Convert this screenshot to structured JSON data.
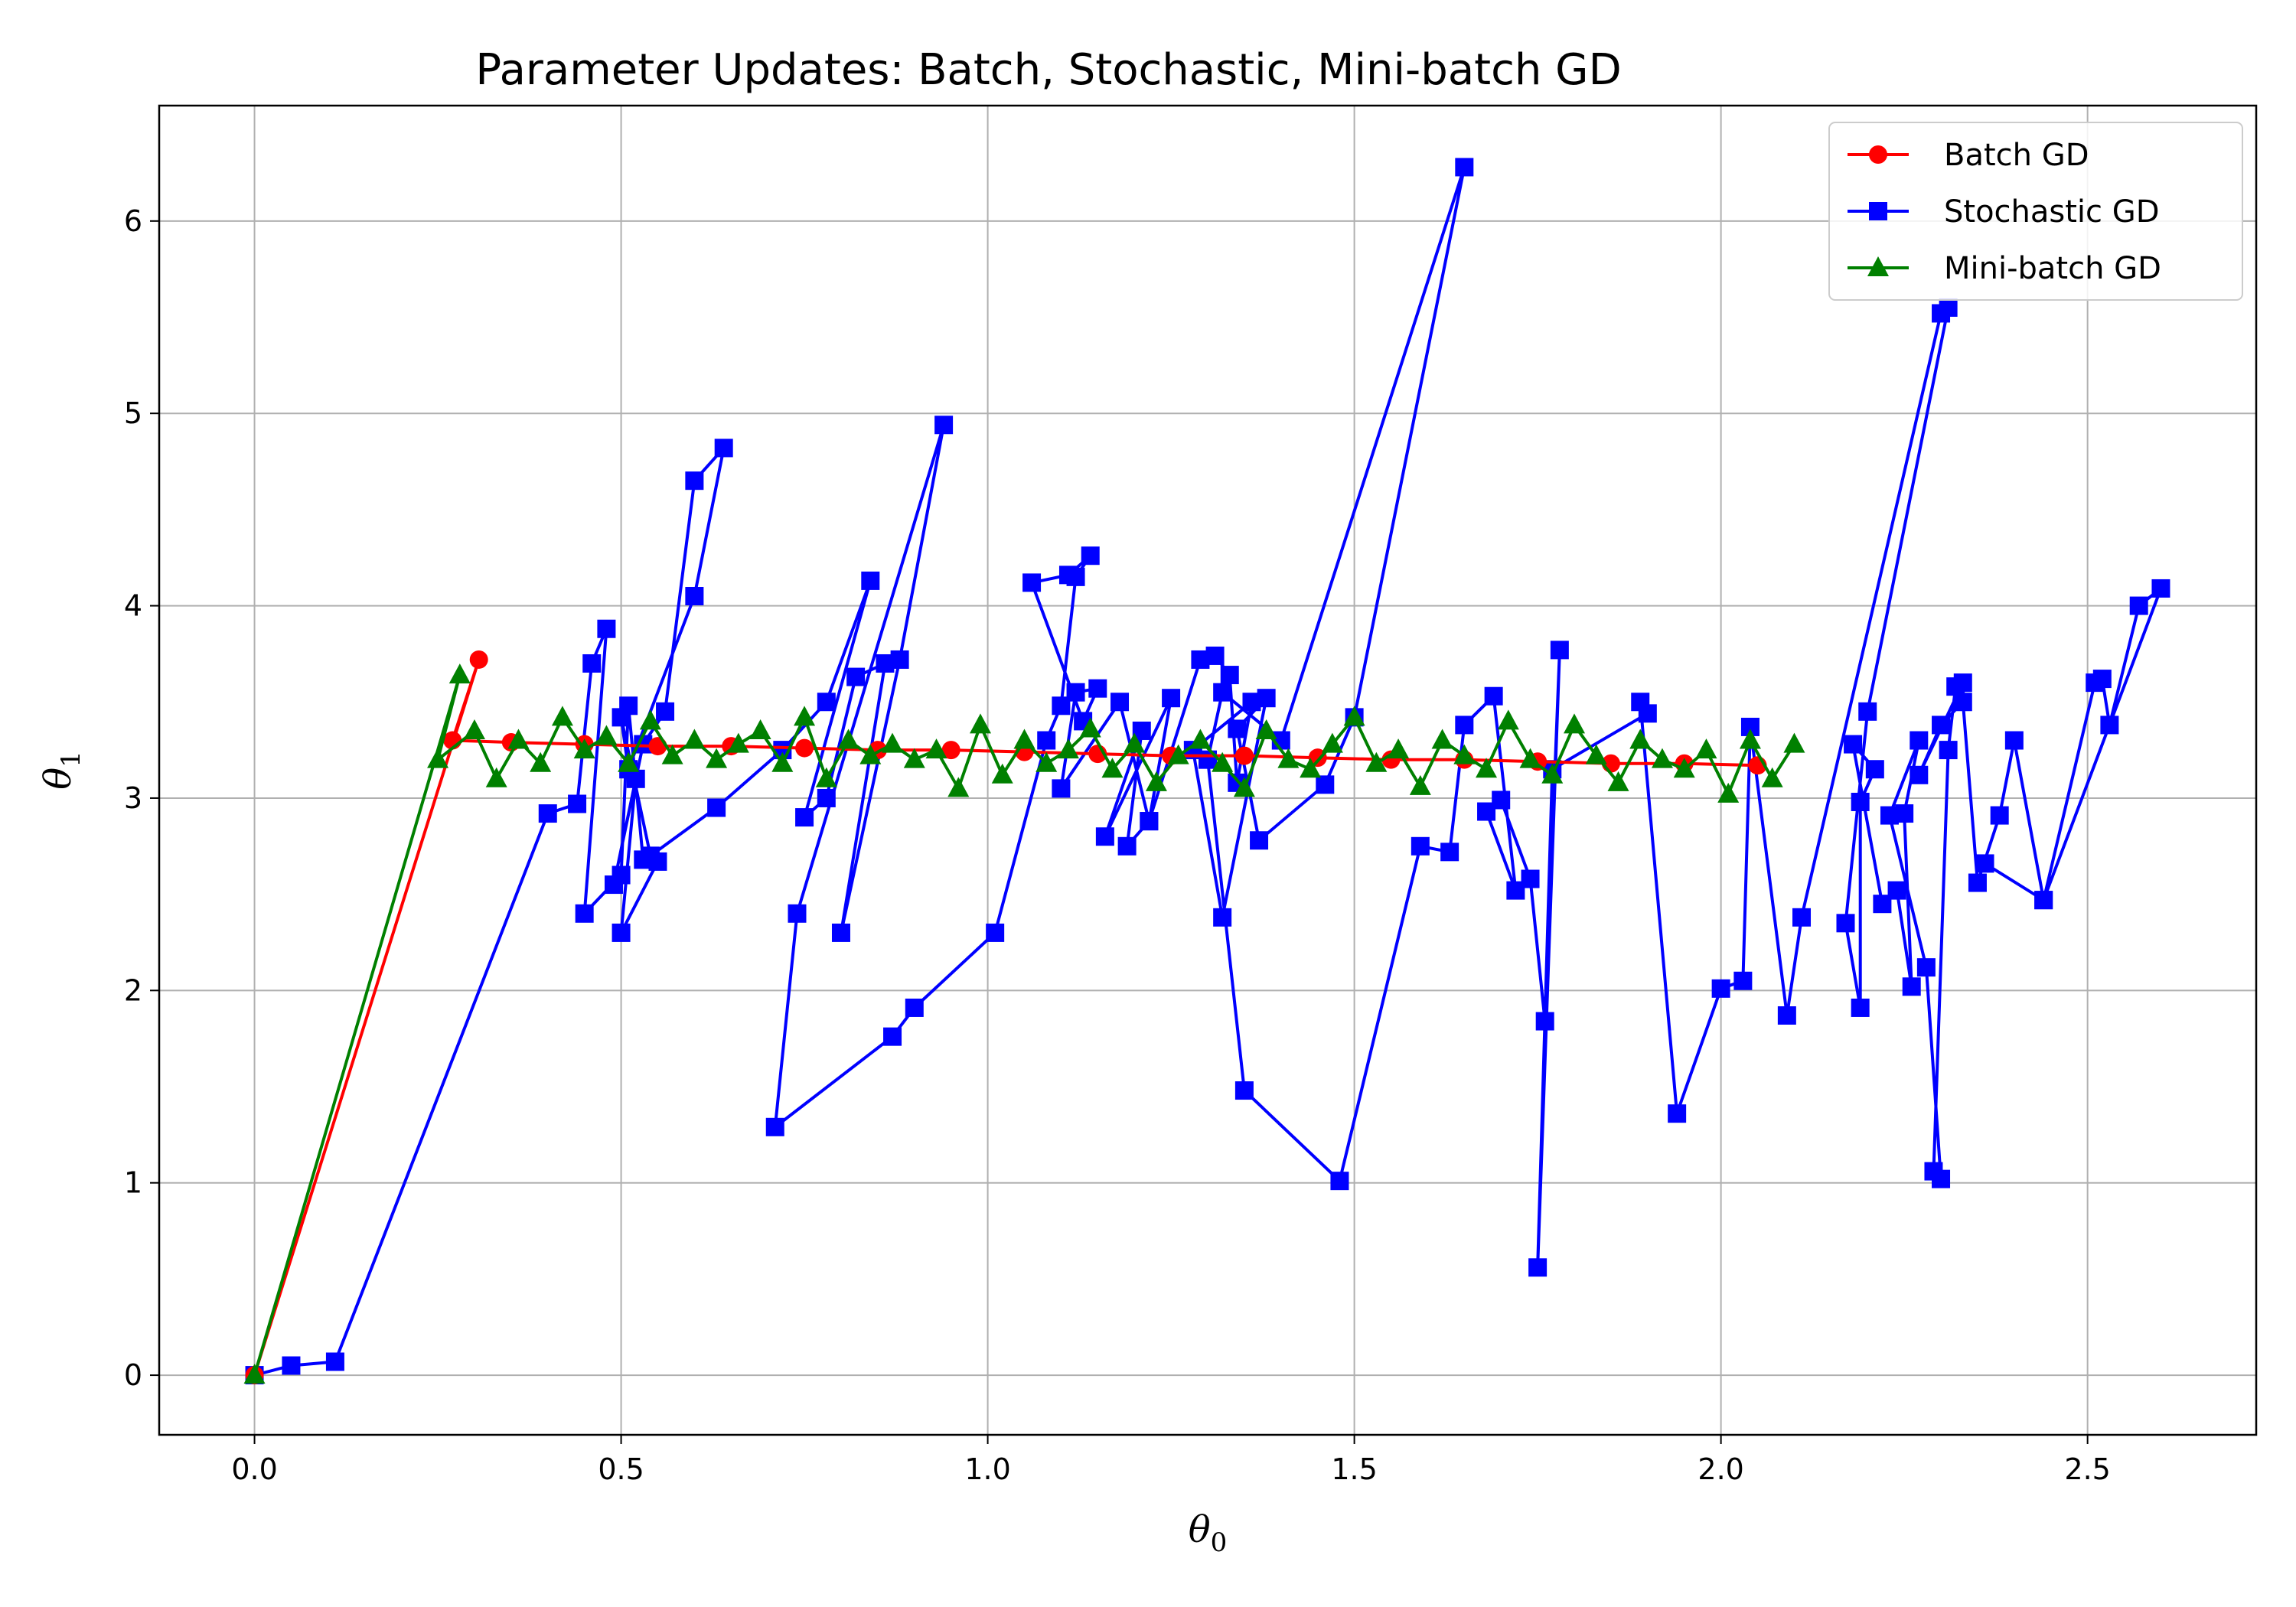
{
  "chart_data": {
    "type": "line",
    "title": "Parameter Updates: Batch, Stochastic, Mini-batch GD",
    "xlabel_main": "θ",
    "xlabel_sub": "0",
    "ylabel_main": "θ",
    "ylabel_sub": "1",
    "xlim": [
      -0.13,
      2.73
    ],
    "ylim": [
      -0.31,
      6.6
    ],
    "xticks": [
      0.0,
      0.5,
      1.0,
      1.5,
      2.0,
      2.5
    ],
    "xtick_labels": [
      "0.0",
      "0.5",
      "1.0",
      "1.5",
      "2.0",
      "2.5"
    ],
    "yticks": [
      0,
      1,
      2,
      3,
      4,
      5,
      6
    ],
    "ytick_labels": [
      "0",
      "1",
      "2",
      "3",
      "4",
      "5",
      "6"
    ],
    "grid": true,
    "legend_position": "top-right",
    "series": [
      {
        "name": "Batch GD",
        "color": "#ff0000",
        "marker": "circle",
        "x": [
          0.0,
          0.306,
          0.27,
          0.35,
          0.45,
          0.55,
          0.65,
          0.75,
          0.85,
          0.95,
          1.05,
          1.15,
          1.25,
          1.35,
          1.45,
          1.55,
          1.65,
          1.75,
          1.85,
          1.95,
          2.05
        ],
        "y": [
          0.0,
          3.72,
          3.3,
          3.29,
          3.28,
          3.27,
          3.27,
          3.26,
          3.25,
          3.25,
          3.24,
          3.23,
          3.22,
          3.22,
          3.21,
          3.2,
          3.2,
          3.19,
          3.18,
          3.18,
          3.17
        ]
      },
      {
        "name": "Stochastic GD",
        "color": "#0000ff",
        "marker": "square",
        "x": [
          0.0,
          0.05,
          0.11,
          0.4,
          0.44,
          0.46,
          0.48,
          0.45,
          0.5,
          0.51,
          0.53,
          0.55,
          0.5,
          0.52,
          0.49,
          0.53,
          0.56,
          0.6,
          0.64,
          0.6,
          0.51,
          0.5,
          0.54,
          0.63,
          0.72,
          0.78,
          0.84,
          0.75,
          0.78,
          0.82,
          0.86,
          0.8,
          0.88,
          0.94,
          0.74,
          0.71,
          0.87,
          0.9,
          1.01,
          1.08,
          1.1,
          1.12,
          1.14,
          1.11,
          1.06,
          1.13,
          1.15,
          1.12,
          1.1,
          1.18,
          1.22,
          1.25,
          1.16,
          1.21,
          1.19,
          1.22,
          1.29,
          1.31,
          1.33,
          1.34,
          1.36,
          1.28,
          1.32,
          1.38,
          1.34,
          1.37,
          1.46,
          1.5,
          1.65,
          1.4,
          1.32,
          1.3,
          1.35,
          1.48,
          1.59,
          1.63,
          1.65,
          1.69,
          1.72,
          1.68,
          1.7,
          1.74,
          1.76,
          1.78,
          1.75,
          1.77,
          1.9,
          1.89,
          1.94,
          2.0,
          2.03,
          2.04,
          2.09,
          2.11,
          2.3,
          2.31,
          2.2,
          2.17,
          2.19,
          2.19,
          2.21,
          2.18,
          2.22,
          2.24,
          2.26,
          2.25,
          2.27,
          2.23,
          2.28,
          2.3,
          2.29,
          2.31,
          2.32,
          2.33,
          2.27,
          2.3,
          2.33,
          2.35,
          2.38,
          2.4,
          2.44,
          2.51,
          2.52,
          2.53,
          2.57,
          2.6,
          2.44,
          2.36
        ],
        "y": [
          0.0,
          0.05,
          0.07,
          2.92,
          2.97,
          3.7,
          3.88,
          2.4,
          2.6,
          3.48,
          2.68,
          2.67,
          2.3,
          3.1,
          2.55,
          3.28,
          3.45,
          4.65,
          4.82,
          4.05,
          3.15,
          3.42,
          2.7,
          2.95,
          3.25,
          3.5,
          4.13,
          2.9,
          3.0,
          3.63,
          3.7,
          2.3,
          3.72,
          4.94,
          2.4,
          1.29,
          1.76,
          1.91,
          2.3,
          3.3,
          3.48,
          4.15,
          4.26,
          4.16,
          4.12,
          3.4,
          3.57,
          3.55,
          3.05,
          3.5,
          2.88,
          3.52,
          2.8,
          3.35,
          2.75,
          2.88,
          3.72,
          3.74,
          3.64,
          3.08,
          3.5,
          3.25,
          2.38,
          3.52,
          3.36,
          2.78,
          3.07,
          3.42,
          6.28,
          3.3,
          3.55,
          3.2,
          1.48,
          1.01,
          2.75,
          2.72,
          3.38,
          3.53,
          2.52,
          2.93,
          2.99,
          2.58,
          1.84,
          3.77,
          0.56,
          3.15,
          3.44,
          3.5,
          1.36,
          2.01,
          2.05,
          3.37,
          1.87,
          2.38,
          5.52,
          5.55,
          3.45,
          2.35,
          1.91,
          2.98,
          3.15,
          3.28,
          2.45,
          2.52,
          2.02,
          2.92,
          3.3,
          2.91,
          2.12,
          1.02,
          1.06,
          3.25,
          3.58,
          3.6,
          3.12,
          3.38,
          3.5,
          2.56,
          2.91,
          3.3,
          2.47,
          3.6,
          3.62,
          3.38,
          4.0,
          4.09,
          2.47,
          2.66
        ]
      },
      {
        "name": "Mini-batch GD",
        "color": "#008000",
        "marker": "triangle",
        "x": [
          0.0,
          0.28,
          0.25,
          0.3,
          0.33,
          0.36,
          0.39,
          0.42,
          0.45,
          0.48,
          0.51,
          0.54,
          0.57,
          0.6,
          0.63,
          0.66,
          0.69,
          0.72,
          0.75,
          0.78,
          0.81,
          0.84,
          0.87,
          0.9,
          0.93,
          0.96,
          0.99,
          1.02,
          1.05,
          1.08,
          1.11,
          1.14,
          1.17,
          1.2,
          1.23,
          1.26,
          1.29,
          1.32,
          1.35,
          1.38,
          1.41,
          1.44,
          1.47,
          1.5,
          1.53,
          1.56,
          1.59,
          1.62,
          1.65,
          1.68,
          1.71,
          1.74,
          1.77,
          1.8,
          1.83,
          1.86,
          1.89,
          1.92,
          1.95,
          1.98,
          2.01,
          2.04,
          2.07,
          2.1
        ],
        "y": [
          0.0,
          3.64,
          3.2,
          3.35,
          3.1,
          3.3,
          3.18,
          3.42,
          3.25,
          3.32,
          3.18,
          3.4,
          3.22,
          3.3,
          3.2,
          3.28,
          3.35,
          3.18,
          3.42,
          3.1,
          3.3,
          3.22,
          3.28,
          3.2,
          3.25,
          3.05,
          3.38,
          3.12,
          3.3,
          3.18,
          3.25,
          3.36,
          3.15,
          3.28,
          3.08,
          3.22,
          3.3,
          3.18,
          3.05,
          3.35,
          3.2,
          3.15,
          3.28,
          3.42,
          3.18,
          3.25,
          3.06,
          3.3,
          3.22,
          3.15,
          3.4,
          3.2,
          3.12,
          3.38,
          3.22,
          3.08,
          3.3,
          3.2,
          3.15,
          3.25,
          3.02,
          3.3,
          3.1,
          3.28
        ]
      }
    ]
  }
}
